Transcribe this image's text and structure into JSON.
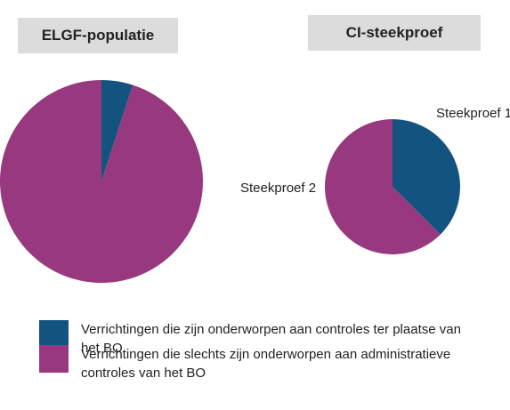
{
  "colors": {
    "blue": "#13537f",
    "purple": "#98387f"
  },
  "chart_data": [
    {
      "type": "pie",
      "title": "ELGF-populatie",
      "slices": [
        {
          "name": "Verrichtingen die zijn onderworpen aan controles ter plaatse van het BO",
          "value": 5,
          "color": "#13537f"
        },
        {
          "name": "Verrichtingen die slechts zijn onderworpen aan administratieve controles van het BO",
          "value": 95,
          "color": "#98387f"
        }
      ]
    },
    {
      "type": "pie",
      "title": "CI-steekproef",
      "slices": [
        {
          "name": "Verrichtingen die zijn onderworpen aan controles ter plaatse van het BO",
          "label": "Steekproef 1",
          "value": 37.5,
          "color": "#13537f"
        },
        {
          "name": "Verrichtingen die slechts zijn onderworpen aan administratieve controles van het BO",
          "label": "Steekproef 2",
          "value": 62.5,
          "color": "#98387f"
        }
      ]
    }
  ],
  "legend": [
    {
      "label": "Verrichtingen die zijn onderworpen aan controles ter plaatse van het BO",
      "color": "#13537f"
    },
    {
      "label": "Verrichtingen die slechts zijn onderworpen aan administratieve controles van het BO",
      "color": "#98387f"
    }
  ]
}
